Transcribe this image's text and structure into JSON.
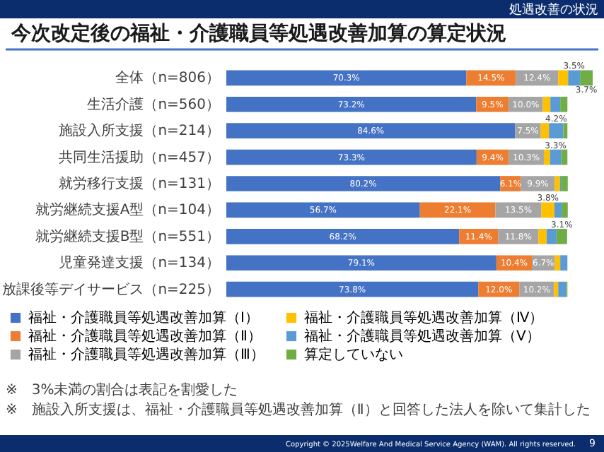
{
  "chart_data": {
    "type": "bar",
    "orientation": "horizontal",
    "stacked": true,
    "title": "今次改定後の福祉・介護職員等処遇改善加算の算定状況",
    "categories": [
      "全体（n=806）",
      "生活介護（n=560）",
      "施設入所支援（n=214）",
      "共同生活援助（n=457）",
      "就労移行支援（n=131）",
      "就労継続支援A型（n=104）",
      "就労継続支援B型（n=551）",
      "児童発達支援（n=134）",
      "放課後等デイサービス（n=225）"
    ],
    "series": [
      {
        "name": "福祉・介護職員等処遇改善加算（Ⅰ）",
        "color": "#4472c4",
        "values": [
          70.3,
          73.2,
          84.6,
          73.3,
          80.2,
          56.7,
          68.2,
          79.1,
          73.8
        ],
        "value_labels": [
          "70.3%",
          "73.2%",
          "84.6%",
          "73.3%",
          "80.2%",
          "56.7%",
          "68.2%",
          "79.1%",
          "73.8%"
        ]
      },
      {
        "name": "福祉・介護職員等処遇改善加算（Ⅱ）",
        "color": "#ed7d31",
        "values": [
          14.5,
          9.5,
          0,
          9.4,
          6.1,
          22.1,
          11.4,
          10.4,
          12.0
        ],
        "value_labels": [
          "14.5%",
          "9.5%",
          null,
          "9.4%",
          "6.1%",
          "22.1%",
          "11.4%",
          "10.4%",
          "12.0%"
        ]
      },
      {
        "name": "福祉・介護職員等処遇改善加算（Ⅲ）",
        "color": "#a5a5a5",
        "values": [
          12.4,
          10.0,
          7.5,
          10.3,
          9.9,
          13.5,
          11.8,
          6.7,
          10.2
        ],
        "value_labels": [
          "12.4%",
          "10.0%",
          "7.5%",
          "10.3%",
          "9.9%",
          "13.5%",
          "11.8%",
          "6.7%",
          "10.2%"
        ]
      },
      {
        "name": "福祉・介護職員等処遇改善加算（Ⅳ）",
        "color": "#ffc000",
        "values": [
          2.9,
          2.2,
          2.4,
          1.8,
          1.5,
          3.8,
          2.4,
          1.6,
          1.2
        ],
        "value_labels": [
          null,
          null,
          null,
          null,
          null,
          "3.8%",
          null,
          null,
          null
        ]
      },
      {
        "name": "福祉・介護職員等処遇改善加算（Ⅴ）",
        "color": "#5b9bd5",
        "values": [
          3.5,
          2.9,
          4.2,
          3.3,
          0.3,
          2.1,
          2.9,
          2.1,
          2.3
        ],
        "value_labels": [
          "3.5%",
          null,
          "4.2%",
          "3.3%",
          null,
          null,
          null,
          null,
          null
        ]
      },
      {
        "name": "算定していない",
        "color": "#70ad47",
        "values": [
          3.7,
          2.1,
          1.2,
          1.8,
          2.0,
          1.8,
          3.1,
          0,
          0.4
        ],
        "value_labels": [
          "3.7%",
          null,
          null,
          null,
          null,
          null,
          "3.1%",
          null,
          null
        ]
      }
    ],
    "legend": "bottom",
    "annotations": [
      "処遇改善の状況",
      "※　3%未満の割合は表記を割愛した",
      "※　施設入所支援は、福祉・介護職員等処遇改善加算（Ⅱ）と回答した法人を除いて集計した",
      "Copyright © 2025Welfare And Medical Service Agency (WAM). All rights reserved.",
      "9"
    ]
  }
}
